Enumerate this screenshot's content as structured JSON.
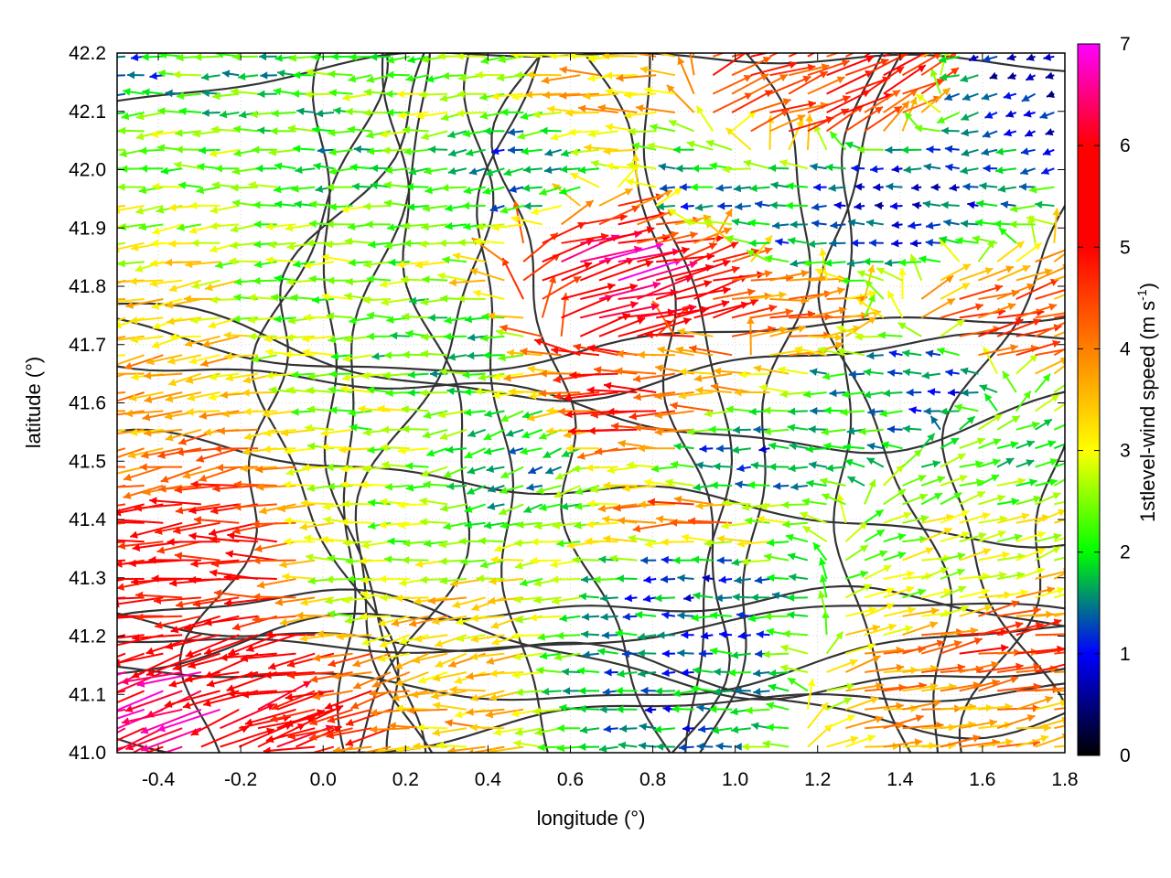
{
  "chart_data": {
    "type": "vector-field",
    "title": "",
    "xlabel": "longitude (°)",
    "ylabel": "latitude (°)",
    "xlim": [
      -0.5,
      1.8
    ],
    "ylim": [
      41.0,
      42.2
    ],
    "xticks": [
      -0.4,
      -0.2,
      0.0,
      0.2,
      0.4,
      0.6,
      0.8,
      1.0,
      1.2,
      1.4,
      1.6,
      1.8
    ],
    "xtick_labels": [
      "-0.4",
      "-0.2",
      "0.0",
      "0.2",
      "0.4",
      "0.6",
      "0.8",
      "1.0",
      "1.2",
      "1.4",
      "1.6",
      "1.8"
    ],
    "yticks": [
      41.0,
      41.1,
      41.2,
      41.3,
      41.4,
      41.5,
      41.6,
      41.7,
      41.8,
      41.9,
      42.0,
      42.1,
      42.2
    ],
    "ytick_labels": [
      "41.0",
      "41.1",
      "41.2",
      "41.3",
      "41.4",
      "41.5",
      "41.6",
      "41.7",
      "41.8",
      "41.9",
      "42.0",
      "42.1",
      "42.2"
    ],
    "grid": true,
    "colorbar": {
      "label": "1stlevel-wind speed (m s",
      "label_sup": "-1",
      "label_end": ")",
      "range": [
        0,
        7
      ],
      "ticks": [
        0,
        1,
        2,
        3,
        4,
        5,
        6,
        7
      ],
      "tick_labels": [
        "0",
        "1",
        "2",
        "3",
        "4",
        "5",
        "6",
        "7"
      ],
      "colors": [
        "#000000",
        "#0000ff",
        "#00ff00",
        "#ffff00",
        "#ff8000",
        "#ff0000",
        "#ff00ff"
      ]
    },
    "vectors": [
      {
        "lon": -0.4,
        "lat": 42.15,
        "speed": 1.5,
        "dir": 180
      },
      {
        "lon": -0.3,
        "lat": 42.15,
        "speed": 2.2,
        "dir": 180
      },
      {
        "lon": -0.2,
        "lat": 42.15,
        "speed": 2.0,
        "dir": 180
      },
      {
        "lon": 0.3,
        "lat": 42.15,
        "speed": 2.5,
        "dir": 185
      },
      {
        "lon": 0.7,
        "lat": 42.15,
        "speed": 3.5,
        "dir": 180
      },
      {
        "lon": 1.1,
        "lat": 42.15,
        "speed": 4.6,
        "dir": 20
      },
      {
        "lon": 1.3,
        "lat": 42.15,
        "speed": 4.8,
        "dir": 25
      },
      {
        "lon": 1.7,
        "lat": 42.15,
        "speed": 1.0,
        "dir": 200
      },
      {
        "lon": -0.4,
        "lat": 42.05,
        "speed": 2.6,
        "dir": 185
      },
      {
        "lon": -0.3,
        "lat": 42.0,
        "speed": 2.5,
        "dir": 180
      },
      {
        "lon": 0.0,
        "lat": 42.0,
        "speed": 2.0,
        "dir": 180
      },
      {
        "lon": 0.5,
        "lat": 42.0,
        "speed": 1.5,
        "dir": 190
      },
      {
        "lon": 0.9,
        "lat": 41.95,
        "speed": 1.5,
        "dir": 180
      },
      {
        "lon": 1.4,
        "lat": 41.95,
        "speed": 1.0,
        "dir": 180
      },
      {
        "lon": -0.4,
        "lat": 41.9,
        "speed": 2.8,
        "dir": 190
      },
      {
        "lon": 0.1,
        "lat": 41.9,
        "speed": 2.5,
        "dir": 180
      },
      {
        "lon": 0.8,
        "lat": 41.9,
        "speed": 4.5,
        "dir": 15
      },
      {
        "lon": 1.2,
        "lat": 41.9,
        "speed": 1.5,
        "dir": 180
      },
      {
        "lon": -0.4,
        "lat": 41.8,
        "speed": 3.2,
        "dir": 190
      },
      {
        "lon": 0.0,
        "lat": 41.8,
        "speed": 2.5,
        "dir": 180
      },
      {
        "lon": 0.7,
        "lat": 41.83,
        "speed": 6.5,
        "dir": 15
      },
      {
        "lon": 0.8,
        "lat": 41.78,
        "speed": 5.8,
        "dir": 15
      },
      {
        "lon": 1.1,
        "lat": 41.75,
        "speed": 4.0,
        "dir": 5
      },
      {
        "lon": 1.6,
        "lat": 41.72,
        "speed": 4.5,
        "dir": 15
      },
      {
        "lon": -0.4,
        "lat": 41.7,
        "speed": 3.6,
        "dir": 190
      },
      {
        "lon": 0.3,
        "lat": 41.7,
        "speed": 2.0,
        "dir": 180
      },
      {
        "lon": 0.9,
        "lat": 41.65,
        "speed": 3.8,
        "dir": 180
      },
      {
        "lon": 1.5,
        "lat": 41.65,
        "speed": 1.2,
        "dir": 180
      },
      {
        "lon": -0.4,
        "lat": 41.6,
        "speed": 3.8,
        "dir": 190
      },
      {
        "lon": 0.1,
        "lat": 41.6,
        "speed": 2.6,
        "dir": 180
      },
      {
        "lon": 0.8,
        "lat": 41.6,
        "speed": 5.2,
        "dir": 180
      },
      {
        "lon": 1.3,
        "lat": 41.6,
        "speed": 1.8,
        "dir": 180
      },
      {
        "lon": -0.3,
        "lat": 41.5,
        "speed": 3.9,
        "dir": 190
      },
      {
        "lon": 0.5,
        "lat": 41.5,
        "speed": 1.8,
        "dir": 200
      },
      {
        "lon": 1.0,
        "lat": 41.5,
        "speed": 1.2,
        "dir": 180
      },
      {
        "lon": 1.6,
        "lat": 41.48,
        "speed": 2.2,
        "dir": 20
      },
      {
        "lon": -0.3,
        "lat": 41.4,
        "speed": 5.1,
        "dir": 185
      },
      {
        "lon": 0.2,
        "lat": 41.4,
        "speed": 2.4,
        "dir": 180
      },
      {
        "lon": 0.9,
        "lat": 41.4,
        "speed": 4.2,
        "dir": 180
      },
      {
        "lon": 1.7,
        "lat": 41.38,
        "speed": 3.0,
        "dir": 20
      },
      {
        "lon": -0.2,
        "lat": 41.3,
        "speed": 5.0,
        "dir": 180
      },
      {
        "lon": 0.1,
        "lat": 41.3,
        "speed": 2.5,
        "dir": 180
      },
      {
        "lon": 0.9,
        "lat": 41.3,
        "speed": 1.2,
        "dir": 180
      },
      {
        "lon": 1.5,
        "lat": 41.3,
        "speed": 2.7,
        "dir": 15
      },
      {
        "lon": -0.2,
        "lat": 41.2,
        "speed": 5.4,
        "dir": 195
      },
      {
        "lon": 0.3,
        "lat": 41.2,
        "speed": 3.4,
        "dir": 195
      },
      {
        "lon": 0.9,
        "lat": 41.2,
        "speed": 1.5,
        "dir": 180
      },
      {
        "lon": 1.6,
        "lat": 41.18,
        "speed": 4.6,
        "dir": 10
      },
      {
        "lon": -0.3,
        "lat": 41.08,
        "speed": 6.6,
        "dir": 200
      },
      {
        "lon": 0.1,
        "lat": 41.08,
        "speed": 4.6,
        "dir": 195
      },
      {
        "lon": 0.8,
        "lat": 41.08,
        "speed": 1.4,
        "dir": 180
      },
      {
        "lon": 1.5,
        "lat": 41.08,
        "speed": 3.8,
        "dir": 10
      },
      {
        "lon": -0.2,
        "lat": 41.02,
        "speed": 5.6,
        "dir": 20
      },
      {
        "lon": 0.3,
        "lat": 41.02,
        "speed": 3.5,
        "dir": 180
      },
      {
        "lon": 1.7,
        "lat": 41.02,
        "speed": 3.8,
        "dir": 10
      }
    ]
  }
}
